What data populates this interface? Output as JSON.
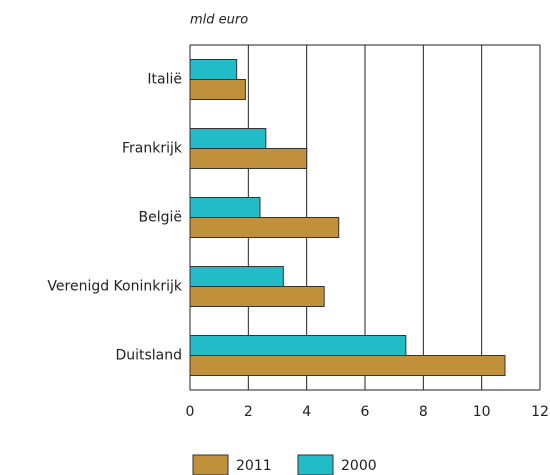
{
  "chart_data": {
    "type": "bar",
    "orientation": "horizontal",
    "unit_label": "mld euro",
    "categories": [
      "Italië",
      "Frankrijk",
      "België",
      "Verenigd Koninkrijk",
      "Duitsland"
    ],
    "series": [
      {
        "name": "2000",
        "color": "#22bcc8",
        "values": [
          1.6,
          2.6,
          2.4,
          3.2,
          7.4
        ]
      },
      {
        "name": "2011",
        "color": "#c0903a",
        "values": [
          1.9,
          4.0,
          5.1,
          4.6,
          10.8
        ]
      }
    ],
    "legend_order": [
      "2011",
      "2000"
    ],
    "xlim": [
      0,
      12
    ],
    "xticks": [
      0,
      2,
      4,
      6,
      8,
      10,
      12
    ],
    "grid": true
  }
}
